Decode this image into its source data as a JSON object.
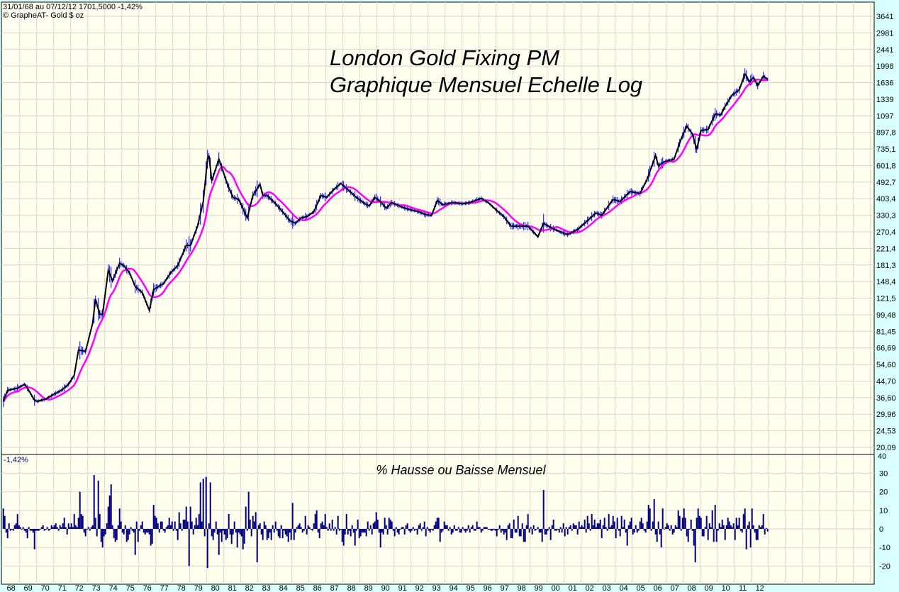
{
  "header": {
    "range_info": "31/01/68 au 07/12/12  1701,5000  -1,42%",
    "copyright": "© GrapheAT- Gold $ oz"
  },
  "colors": {
    "background": "#d9ffff",
    "plot": "#fffff0",
    "grid": "#e3cfcf",
    "close": "#000000",
    "range": "#0000ff",
    "moving_average": "#ff00ff",
    "bars": "#000080"
  },
  "chart_data": [
    {
      "type": "line",
      "title": "London Gold Fixing PM",
      "subtitle": "Graphique Mensuel Echelle Log",
      "y_scale": "log",
      "ylim": [
        20.09,
        3641
      ],
      "y_ticks": [
        "3641",
        "2981",
        "2441",
        "1998",
        "1636",
        "1339",
        "1097",
        "897,8",
        "735,1",
        "601,8",
        "492,7",
        "403,4",
        "330,3",
        "270,4",
        "221,4",
        "181,3",
        "148,4",
        "121,5",
        "99,48",
        "81,45",
        "66,69",
        "54,60",
        "44,70",
        "36,60",
        "29,96",
        "24,53",
        "20,09"
      ],
      "x_ticks": [
        "68",
        "69",
        "70",
        "71",
        "72",
        "73",
        "74",
        "75",
        "76",
        "77",
        "78",
        "79",
        "80",
        "81",
        "82",
        "83",
        "84",
        "85",
        "86",
        "87",
        "88",
        "89",
        "90",
        "91",
        "92",
        "93",
        "94",
        "95",
        "96",
        "97",
        "98",
        "99",
        "00",
        "01",
        "02",
        "03",
        "04",
        "05",
        "06",
        "07",
        "08",
        "09",
        "10",
        "11",
        "12"
      ],
      "grid": true,
      "last_value": "1701,5000",
      "close": [
        [
          "1968-01",
          35
        ],
        [
          "1968-04",
          40
        ],
        [
          "1968-11",
          41
        ],
        [
          "1969-04",
          43
        ],
        [
          "1969-06",
          41
        ],
        [
          "1969-11",
          35.5
        ],
        [
          "1970-01",
          35
        ],
        [
          "1970-07",
          36
        ],
        [
          "1970-11",
          37.5
        ],
        [
          "1971-06",
          40
        ],
        [
          "1971-11",
          43
        ],
        [
          "1972-03",
          48
        ],
        [
          "1972-06",
          65
        ],
        [
          "1972-11",
          64
        ],
        [
          "1973-04",
          90
        ],
        [
          "1973-06",
          120
        ],
        [
          "1973-09",
          100
        ],
        [
          "1973-11",
          100
        ],
        [
          "1974-03",
          170
        ],
        [
          "1974-06",
          150
        ],
        [
          "1974-11",
          185
        ],
        [
          "1975-02",
          180
        ],
        [
          "1975-06",
          165
        ],
        [
          "1975-10",
          140
        ],
        [
          "1976-03",
          130
        ],
        [
          "1976-08",
          105
        ],
        [
          "1976-11",
          135
        ],
        [
          "1977-06",
          145
        ],
        [
          "1977-11",
          165
        ],
        [
          "1978-04",
          180
        ],
        [
          "1978-10",
          230
        ],
        [
          "1979-01",
          230
        ],
        [
          "1979-06",
          290
        ],
        [
          "1979-10",
          390
        ],
        [
          "1980-01",
          650
        ],
        [
          "1980-02",
          680
        ],
        [
          "1980-04",
          500
        ],
        [
          "1980-09",
          650
        ],
        [
          "1980-11",
          590
        ],
        [
          "1981-03",
          480
        ],
        [
          "1981-07",
          410
        ],
        [
          "1981-11",
          400
        ],
        [
          "1982-05",
          320
        ],
        [
          "1982-09",
          420
        ],
        [
          "1983-02",
          480
        ],
        [
          "1983-04",
          420
        ],
        [
          "1983-07",
          420
        ],
        [
          "1984-01",
          380
        ],
        [
          "1984-06",
          345
        ],
        [
          "1984-11",
          310
        ],
        [
          "1985-03",
          300
        ],
        [
          "1985-07",
          320
        ],
        [
          "1985-11",
          325
        ],
        [
          "1986-04",
          345
        ],
        [
          "1986-09",
          420
        ],
        [
          "1987-01",
          410
        ],
        [
          "1987-06",
          450
        ],
        [
          "1987-11",
          485
        ],
        [
          "1988-04",
          450
        ],
        [
          "1988-10",
          410
        ],
        [
          "1989-04",
          380
        ],
        [
          "1989-07",
          370
        ],
        [
          "1989-11",
          410
        ],
        [
          "1990-03",
          390
        ],
        [
          "1990-07",
          360
        ],
        [
          "1990-11",
          385
        ],
        [
          "1991-06",
          365
        ],
        [
          "1991-11",
          355
        ],
        [
          "1992-06",
          345
        ],
        [
          "1992-11",
          333
        ],
        [
          "1993-03",
          330
        ],
        [
          "1993-07",
          395
        ],
        [
          "1993-11",
          375
        ],
        [
          "1994-06",
          385
        ],
        [
          "1995-01",
          380
        ],
        [
          "1995-06",
          385
        ],
        [
          "1996-02",
          405
        ],
        [
          "1996-07",
          385
        ],
        [
          "1997-01",
          350
        ],
        [
          "1997-06",
          325
        ],
        [
          "1997-11",
          290
        ],
        [
          "1998-06",
          290
        ],
        [
          "1998-11",
          290
        ],
        [
          "1999-06",
          255
        ],
        [
          "1999-10",
          300
        ],
        [
          "2000-03",
          285
        ],
        [
          "2000-10",
          270
        ],
        [
          "2001-03",
          262
        ],
        [
          "2001-10",
          278
        ],
        [
          "2002-06",
          315
        ],
        [
          "2002-11",
          340
        ],
        [
          "2003-03",
          330
        ],
        [
          "2003-11",
          400
        ],
        [
          "2004-04",
          390
        ],
        [
          "2004-11",
          440
        ],
        [
          "2005-06",
          430
        ],
        [
          "2005-11",
          510
        ],
        [
          "2006-05",
          680
        ],
        [
          "2006-07",
          600
        ],
        [
          "2006-11",
          630
        ],
        [
          "2007-06",
          650
        ],
        [
          "2007-11",
          830
        ],
        [
          "2008-03",
          970
        ],
        [
          "2008-07",
          880
        ],
        [
          "2008-10",
          730
        ],
        [
          "2009-01",
          920
        ],
        [
          "2009-06",
          930
        ],
        [
          "2009-11",
          1120
        ],
        [
          "2010-03",
          1110
        ],
        [
          "2010-06",
          1230
        ],
        [
          "2010-11",
          1410
        ],
        [
          "2011-04",
          1500
        ],
        [
          "2011-08",
          1820
        ],
        [
          "2011-09",
          1780
        ],
        [
          "2011-11",
          1650
        ],
        [
          "2012-02",
          1740
        ],
        [
          "2012-05",
          1580
        ],
        [
          "2012-09",
          1770
        ],
        [
          "2012-12",
          1701.5
        ]
      ]
    },
    {
      "type": "bar",
      "title": "% Hausse ou Baisse Mensuel",
      "last_value_label": "-1,42%",
      "ylim": [
        -30,
        40
      ],
      "y_ticks": [
        "40",
        "30",
        "20",
        "10",
        "0",
        "-10",
        "-20"
      ],
      "monthly_change_pct_by_year": {
        "1968": [
          11,
          7,
          -2,
          -5,
          3,
          -1,
          0,
          -1,
          2,
          3,
          8,
          2
        ],
        "1969": [
          1,
          0,
          1,
          -1,
          -2,
          -5,
          1,
          -1,
          -1,
          -2,
          -11,
          -1
        ],
        "1970": [
          -1,
          -1,
          0,
          1,
          2,
          -1,
          0,
          1,
          -1,
          0,
          2,
          1
        ],
        "1971": [
          2,
          3,
          1,
          -1,
          2,
          1,
          3,
          6,
          1,
          -3,
          3,
          1
        ],
        "1972": [
          3,
          1,
          8,
          2,
          1,
          6,
          20,
          8,
          7,
          -2,
          -4,
          0
        ],
        "1973": [
          1,
          -1,
          1,
          2,
          29,
          6,
          -4,
          26,
          8,
          -7,
          -10,
          -4
        ],
        "1974": [
          -3,
          3,
          12,
          18,
          24,
          2,
          -5,
          -7,
          -6,
          2,
          11,
          4
        ],
        "1975": [
          -2,
          -3,
          2,
          -7,
          -6,
          -3,
          1,
          -1,
          -2,
          -14,
          4,
          -7
        ],
        "1976": [
          -1,
          2,
          4,
          -2,
          -3,
          -2,
          -2,
          -3,
          -9,
          -8,
          13,
          7
        ],
        "1977": [
          6,
          3,
          -2,
          4,
          4,
          -1,
          -2,
          1,
          2,
          6,
          2,
          4
        ],
        "1978": [
          -1,
          4,
          -1,
          -6,
          9,
          3,
          -1,
          5,
          5,
          12,
          4,
          -20
        ],
        "1979": [
          12,
          4,
          -3,
          2,
          6,
          2,
          8,
          25,
          4,
          27,
          -4,
          28
        ],
        "1980": [
          -21,
          3,
          25,
          -4,
          -6,
          -2,
          4,
          -3,
          -14,
          -2,
          -7,
          -1
        ],
        "1981": [
          -3,
          -6,
          -5,
          8,
          -3,
          -8,
          -3,
          4,
          -2,
          -10,
          -2,
          -3
        ],
        "1982": [
          -4,
          -11,
          -8,
          12,
          -1,
          20,
          5,
          -4,
          7,
          4,
          9,
          -18
        ],
        "1983": [
          2,
          3,
          -3,
          -6,
          4,
          2,
          -6,
          -5,
          -2,
          -6,
          2,
          -2
        ],
        "1984": [
          4,
          -1,
          -4,
          -5,
          2,
          -5,
          -1,
          -3,
          -4,
          -7,
          -2,
          -6
        ],
        "1985": [
          14,
          -6,
          -2,
          1,
          2,
          3,
          1,
          -2,
          -1,
          7,
          -3,
          2
        ],
        "1986": [
          1,
          0,
          -1,
          3,
          8,
          10,
          -2,
          -5,
          3,
          4,
          2,
          8
        ],
        "1987": [
          1,
          -1,
          3,
          -1,
          5,
          -1,
          1,
          -3,
          7,
          -1,
          0,
          -7
        ],
        "1988": [
          -9,
          -3,
          8,
          -3,
          -1,
          -4,
          2,
          -2,
          -9,
          -1,
          5,
          -5
        ],
        "1989": [
          -4,
          -2,
          -2,
          -2,
          -4,
          4,
          -1,
          2,
          -3,
          3,
          4,
          9
        ],
        "1990": [
          5,
          -2,
          -10,
          -2,
          -3,
          6,
          2,
          -3,
          6,
          5,
          4,
          -1
        ],
        "1991": [
          -4,
          1,
          -2,
          -3,
          0,
          1,
          1,
          -3,
          2,
          3,
          -1,
          -2
        ],
        "1992": [
          -1,
          1,
          -1,
          0,
          -3,
          2,
          3,
          -1,
          1,
          4,
          -4,
          1
        ],
        "1993": [
          -1,
          -2,
          0,
          -1,
          2,
          4,
          6,
          6,
          -7,
          -2,
          -1,
          4
        ],
        "1994": [
          2,
          2,
          -1,
          1,
          -3,
          -2,
          2,
          -1,
          -1,
          1,
          -2,
          -2
        ],
        "1995": [
          1,
          -1,
          -2,
          -1,
          2,
          -2,
          1,
          2,
          -1,
          -1,
          4,
          1
        ],
        "1996": [
          1,
          -2,
          -1,
          1,
          1,
          1,
          0,
          0,
          -1,
          -1,
          0,
          -1
        ],
        "1997": [
          -4,
          0,
          2,
          -2,
          -1,
          -3,
          -2,
          -6,
          2,
          3,
          -5,
          -5
        ],
        "1998": [
          5,
          -2,
          -2,
          7,
          -4,
          -4,
          3,
          -7,
          -7,
          2,
          8,
          -2
        ],
        "1999": [
          1,
          -3,
          2,
          -1,
          0,
          1,
          -2,
          -2,
          -7,
          21,
          -3,
          -3
        ],
        "2000": [
          -1,
          1,
          -6,
          2,
          5,
          -1,
          -1,
          0,
          -2,
          1,
          -2,
          3
        ],
        "2001": [
          -4,
          1,
          -3,
          1,
          2,
          -1,
          3,
          2,
          2,
          -3,
          4,
          1
        ],
        "2002": [
          2,
          1,
          5,
          -2,
          7,
          3,
          -1,
          8,
          2,
          5,
          1,
          3
        ],
        "2003": [
          3,
          5,
          -5,
          2,
          6,
          1,
          -1,
          8,
          1,
          2,
          7,
          4
        ],
        "2004": [
          -5,
          6,
          -1,
          -4,
          7,
          1,
          5,
          -2,
          -9,
          2,
          4,
          6
        ],
        "2005": [
          -3,
          -2,
          2,
          -2,
          -1,
          4,
          6,
          3,
          -1,
          -2,
          4,
          13
        ],
        "2006": [
          11,
          -1,
          4,
          16,
          -3,
          -7,
          4,
          -3,
          -10,
          11,
          0,
          1
        ],
        "2007": [
          3,
          2,
          -1,
          2,
          -3,
          -2,
          2,
          1,
          10,
          7,
          -1,
          6
        ],
        "2008": [
          11,
          6,
          -4,
          -7,
          0,
          5,
          -1,
          -9,
          -18,
          6,
          11,
          7
        ],
        "2009": [
          6,
          -4,
          -4,
          1,
          7,
          -6,
          3,
          1,
          10,
          -7,
          13,
          -7
        ],
        "2010": [
          -1,
          3,
          1,
          5,
          2,
          -6,
          2,
          6,
          4,
          2,
          1,
          3
        ],
        "2011": [
          -6,
          6,
          2,
          6,
          -1,
          -2,
          8,
          11,
          -11,
          2,
          4,
          -10
        ],
        "2012": [
          11,
          2,
          -2,
          -6,
          -6,
          2,
          1,
          2,
          8,
          -3,
          0.5,
          -1.42
        ]
      }
    }
  ]
}
